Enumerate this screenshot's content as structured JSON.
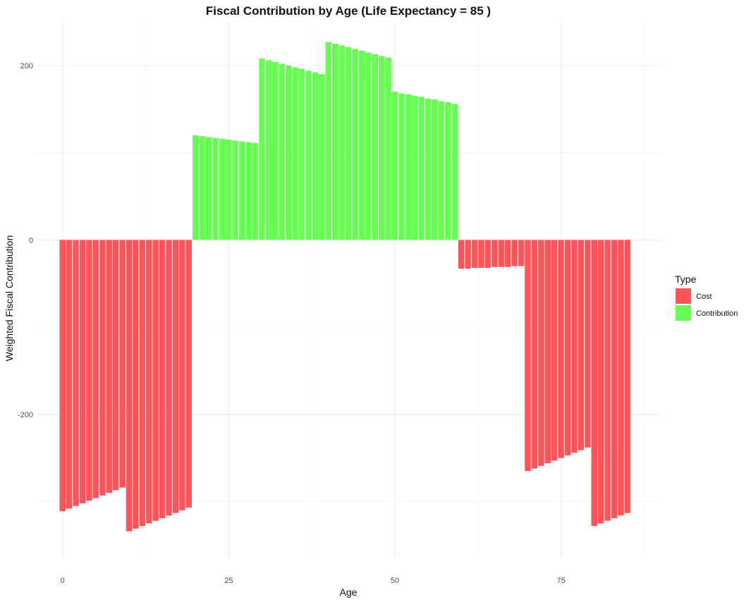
{
  "chart_data": {
    "type": "bar",
    "title": "Fiscal Contribution by Age (Life Expectancy = 85 )",
    "xlabel": "Age",
    "ylabel": "Weighted Fiscal Contribution",
    "xlim": [
      -4,
      90
    ],
    "ylim": [
      -365,
      250
    ],
    "x_ticks": [
      0,
      25,
      50,
      75
    ],
    "x_tick_labels": [
      "0",
      "25",
      "50",
      "75"
    ],
    "y_ticks": [
      -200,
      0,
      200
    ],
    "y_tick_labels": [
      "-200",
      "0",
      "200"
    ],
    "grid": true,
    "legend": {
      "title": "Type",
      "position": "right",
      "entries": [
        {
          "label": "Cost",
          "color": "#ff5459"
        },
        {
          "label": "Contribution",
          "color": "#66ff52"
        }
      ]
    },
    "colors": {
      "Cost": "#ff5459",
      "Contribution": "#66ff52"
    },
    "x": [
      0,
      1,
      2,
      3,
      4,
      5,
      6,
      7,
      8,
      9,
      10,
      11,
      12,
      13,
      14,
      15,
      16,
      17,
      18,
      19,
      20,
      21,
      22,
      23,
      24,
      25,
      26,
      27,
      28,
      29,
      30,
      31,
      32,
      33,
      34,
      35,
      36,
      37,
      38,
      39,
      40,
      41,
      42,
      43,
      44,
      45,
      46,
      47,
      48,
      49,
      50,
      51,
      52,
      53,
      54,
      55,
      56,
      57,
      58,
      59,
      60,
      61,
      62,
      63,
      64,
      65,
      66,
      67,
      68,
      69,
      70,
      71,
      72,
      73,
      74,
      75,
      76,
      77,
      78,
      79,
      80,
      81,
      82,
      83,
      84,
      85
    ],
    "values": [
      -311,
      -308,
      -305,
      -302,
      -299,
      -296,
      -293,
      -290,
      -287,
      -284,
      -334,
      -331,
      -328,
      -325,
      -322,
      -319,
      -316,
      -313,
      -310,
      -307,
      120,
      119,
      118,
      117,
      116,
      115,
      114,
      113,
      112,
      111,
      208,
      206,
      204,
      202,
      200,
      198,
      196,
      194,
      192,
      190,
      227,
      225,
      223,
      221,
      219,
      217,
      215,
      213,
      211,
      209,
      170,
      168,
      167,
      165,
      164,
      162,
      161,
      159,
      158,
      156,
      -33,
      -33,
      -32,
      -32,
      -32,
      -31,
      -31,
      -31,
      -30,
      -30,
      -265,
      -262,
      -259,
      -256,
      -253,
      -250,
      -247,
      -244,
      -241,
      -238,
      -328,
      -325,
      -322,
      -319,
      -316,
      -313
    ],
    "types": [
      "Cost",
      "Cost",
      "Cost",
      "Cost",
      "Cost",
      "Cost",
      "Cost",
      "Cost",
      "Cost",
      "Cost",
      "Cost",
      "Cost",
      "Cost",
      "Cost",
      "Cost",
      "Cost",
      "Cost",
      "Cost",
      "Cost",
      "Cost",
      "Contribution",
      "Contribution",
      "Contribution",
      "Contribution",
      "Contribution",
      "Contribution",
      "Contribution",
      "Contribution",
      "Contribution",
      "Contribution",
      "Contribution",
      "Contribution",
      "Contribution",
      "Contribution",
      "Contribution",
      "Contribution",
      "Contribution",
      "Contribution",
      "Contribution",
      "Contribution",
      "Contribution",
      "Contribution",
      "Contribution",
      "Contribution",
      "Contribution",
      "Contribution",
      "Contribution",
      "Contribution",
      "Contribution",
      "Contribution",
      "Contribution",
      "Contribution",
      "Contribution",
      "Contribution",
      "Contribution",
      "Contribution",
      "Contribution",
      "Contribution",
      "Contribution",
      "Contribution",
      "Cost",
      "Cost",
      "Cost",
      "Cost",
      "Cost",
      "Cost",
      "Cost",
      "Cost",
      "Cost",
      "Cost",
      "Cost",
      "Cost",
      "Cost",
      "Cost",
      "Cost",
      "Cost",
      "Cost",
      "Cost",
      "Cost",
      "Cost",
      "Cost",
      "Cost",
      "Cost",
      "Cost",
      "Cost",
      "Cost"
    ]
  }
}
